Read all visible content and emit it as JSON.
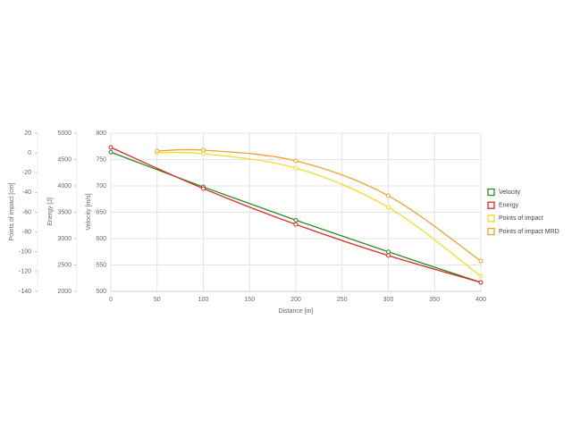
{
  "chart_data": {
    "type": "line",
    "xlabel": "Distance [m]",
    "ylabel": "Velocity [m/s]",
    "y2label": "Energy [J]",
    "y3label": "Points of impact [cm]",
    "xlim": [
      0,
      400
    ],
    "xticks": [
      0,
      50,
      100,
      150,
      200,
      250,
      300,
      350,
      400
    ],
    "ylim": [
      500,
      800
    ],
    "yticks": [
      500,
      550,
      600,
      650,
      700,
      750,
      800
    ],
    "y2lim": [
      2000,
      5000
    ],
    "y2ticks": [
      2000,
      2500,
      3000,
      3500,
      4000,
      4500,
      5000
    ],
    "y3lim": [
      -140,
      20
    ],
    "y3ticks": [
      -140,
      -120,
      -100,
      -80,
      -60,
      -40,
      -20,
      0,
      20
    ],
    "grid": true,
    "legend": "right",
    "series": [
      {
        "name": "Velocity",
        "color": "#2a8a22",
        "axis": "y",
        "x": [
          0,
          100,
          200,
          300,
          400
        ],
        "values": [
          764,
          698,
          635,
          575,
          517
        ]
      },
      {
        "name": "Energy",
        "color": "#e02424",
        "axis": "y2",
        "x": [
          0,
          100,
          200,
          300,
          400
        ],
        "values": [
          4730,
          3950,
          3270,
          2680,
          2170
        ]
      },
      {
        "name": "Points of impact",
        "color": "#f2dc2a",
        "axis": "y3",
        "x": [
          50,
          100,
          200,
          300,
          400
        ],
        "values": [
          0.1,
          -0.8,
          -15.3,
          -55,
          -124.7
        ]
      },
      {
        "name": "Points of impact MRD",
        "color": "#f2a12a",
        "axis": "y3",
        "x": [
          50,
          100,
          200,
          300,
          400
        ],
        "values": [
          1.9,
          2.8,
          -8,
          -43.3,
          -109.3
        ]
      }
    ]
  }
}
